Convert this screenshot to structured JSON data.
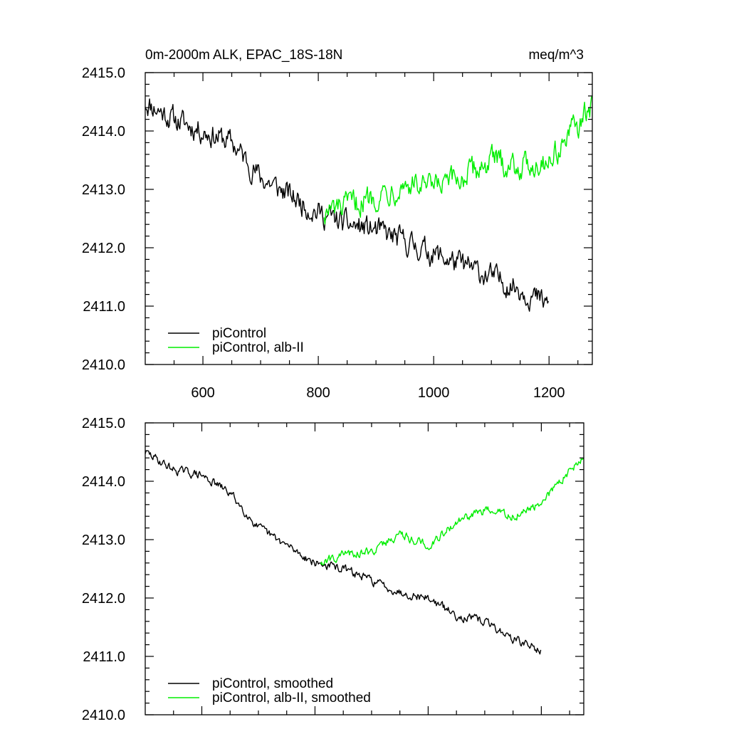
{
  "header": {
    "left": "0m-2000m ALK, EPAC_18S-18N",
    "right": "meq/m^3"
  },
  "colors": {
    "picontrol": "#000000",
    "alb": "#00ee00",
    "axis": "#000000"
  },
  "chart_data": [
    {
      "type": "line",
      "title": "",
      "xlabel": "",
      "ylabel": "",
      "xlim": [
        500,
        1275
      ],
      "ylim": [
        2410.0,
        2415.0
      ],
      "x_ticks": [
        600,
        800,
        1000,
        1200
      ],
      "x_tick_labels": [
        "600",
        "800",
        "1000",
        "1200"
      ],
      "y_ticks": [
        2410.0,
        2411.0,
        2412.0,
        2413.0,
        2414.0,
        2415.0
      ],
      "y_tick_labels": [
        "2410.0",
        "2411.0",
        "2412.0",
        "2413.0",
        "2414.0",
        "2415.0"
      ],
      "legend_position": "bottom-left",
      "series": [
        {
          "name": "piControl",
          "color": "#000000",
          "x": [
            500,
            550,
            600,
            650,
            700,
            750,
            800,
            850,
            900,
            950,
            1000,
            1050,
            1100,
            1150,
            1200
          ],
          "y": [
            2414.5,
            2414.2,
            2414.0,
            2413.8,
            2413.2,
            2412.9,
            2412.6,
            2412.4,
            2412.3,
            2412.1,
            2411.9,
            2411.7,
            2411.5,
            2411.3,
            2411.0
          ],
          "noise": 0.17
        },
        {
          "name": "piControl, alb-II",
          "color": "#00ee00",
          "x": [
            810,
            850,
            900,
            950,
            1000,
            1050,
            1100,
            1150,
            1200,
            1250,
            1275
          ],
          "y": [
            2412.6,
            2412.7,
            2412.9,
            2413.1,
            2413.0,
            2413.2,
            2413.5,
            2413.4,
            2413.5,
            2414.1,
            2414.4
          ],
          "noise": 0.18
        }
      ]
    },
    {
      "type": "line",
      "title": "",
      "xlabel": "",
      "ylabel": "",
      "xlim": [
        500,
        1275
      ],
      "ylim": [
        2410.0,
        2415.0
      ],
      "x_ticks": [
        600,
        800,
        1000,
        1200
      ],
      "x_tick_labels": [],
      "y_ticks": [
        2410.0,
        2411.0,
        2412.0,
        2413.0,
        2414.0,
        2415.0
      ],
      "y_tick_labels": [
        "2410.0",
        "2411.0",
        "2412.0",
        "2413.0",
        "2414.0",
        "2415.0"
      ],
      "legend_position": "bottom-left",
      "series": [
        {
          "name": "piControl, smoothed",
          "color": "#000000",
          "x": [
            500,
            550,
            600,
            650,
            700,
            750,
            800,
            850,
            900,
            950,
            1000,
            1050,
            1100,
            1150,
            1200
          ],
          "y": [
            2414.5,
            2414.2,
            2414.1,
            2413.8,
            2413.2,
            2412.9,
            2412.6,
            2412.5,
            2412.3,
            2412.1,
            2412.0,
            2411.7,
            2411.6,
            2411.3,
            2411.1
          ],
          "noise": 0.06
        },
        {
          "name": "piControl, alb-II, smoothed",
          "color": "#00ee00",
          "x": [
            810,
            850,
            900,
            950,
            1000,
            1050,
            1100,
            1150,
            1200,
            1250,
            1275
          ],
          "y": [
            2412.6,
            2412.75,
            2412.8,
            2413.1,
            2412.9,
            2413.3,
            2413.5,
            2413.4,
            2413.6,
            2414.2,
            2414.4
          ],
          "noise": 0.06
        }
      ]
    }
  ]
}
